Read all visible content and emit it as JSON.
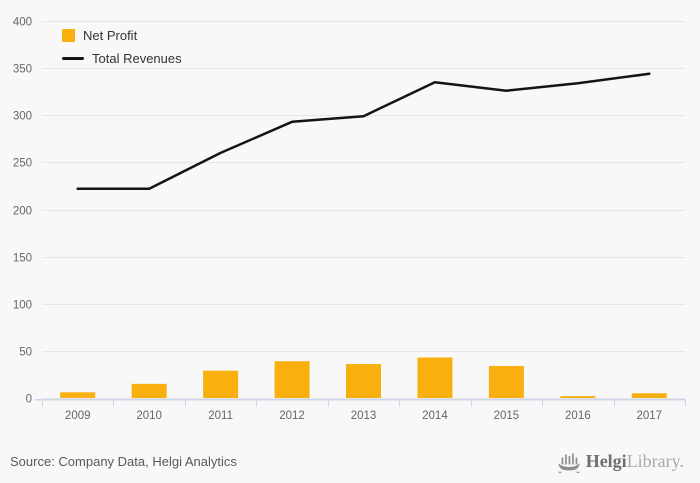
{
  "chart_data": {
    "type": "bar",
    "title": "",
    "categories": [
      "2009",
      "2010",
      "2011",
      "2012",
      "2013",
      "2014",
      "2015",
      "2016",
      "2017"
    ],
    "series": [
      {
        "name": "Net Profit",
        "type": "bar",
        "color": "#f9b00e",
        "values": [
          6,
          15,
          29,
          39,
          36,
          43,
          34,
          2,
          5
        ]
      },
      {
        "name": "Total Revenues",
        "type": "line",
        "color": "#141414",
        "values": [
          222,
          222,
          260,
          293,
          299,
          335,
          326,
          334,
          344
        ]
      }
    ],
    "xlabel": "",
    "ylabel": "",
    "ylim": [
      0,
      400
    ],
    "ytick_step": 50,
    "yticks": [
      0,
      50,
      100,
      150,
      200,
      250,
      300,
      350,
      400
    ],
    "grid": true,
    "legend_position": "top-left"
  },
  "colors": {
    "background": "#f8f8f8",
    "gridline": "#e6e6e6",
    "axis_line": "#ccd6eb",
    "tick_label": "#666666",
    "legend_text": "#333333",
    "source_text": "#595959",
    "logo_primary": "#6e6e6e",
    "logo_secondary": "#a9a9a9",
    "logo_icon": "#8c8c8c"
  },
  "footer": {
    "source": "Source: Company Data, Helgi Analytics",
    "logo": {
      "brand_primary": "Helgi",
      "brand_secondary": "Library."
    }
  }
}
